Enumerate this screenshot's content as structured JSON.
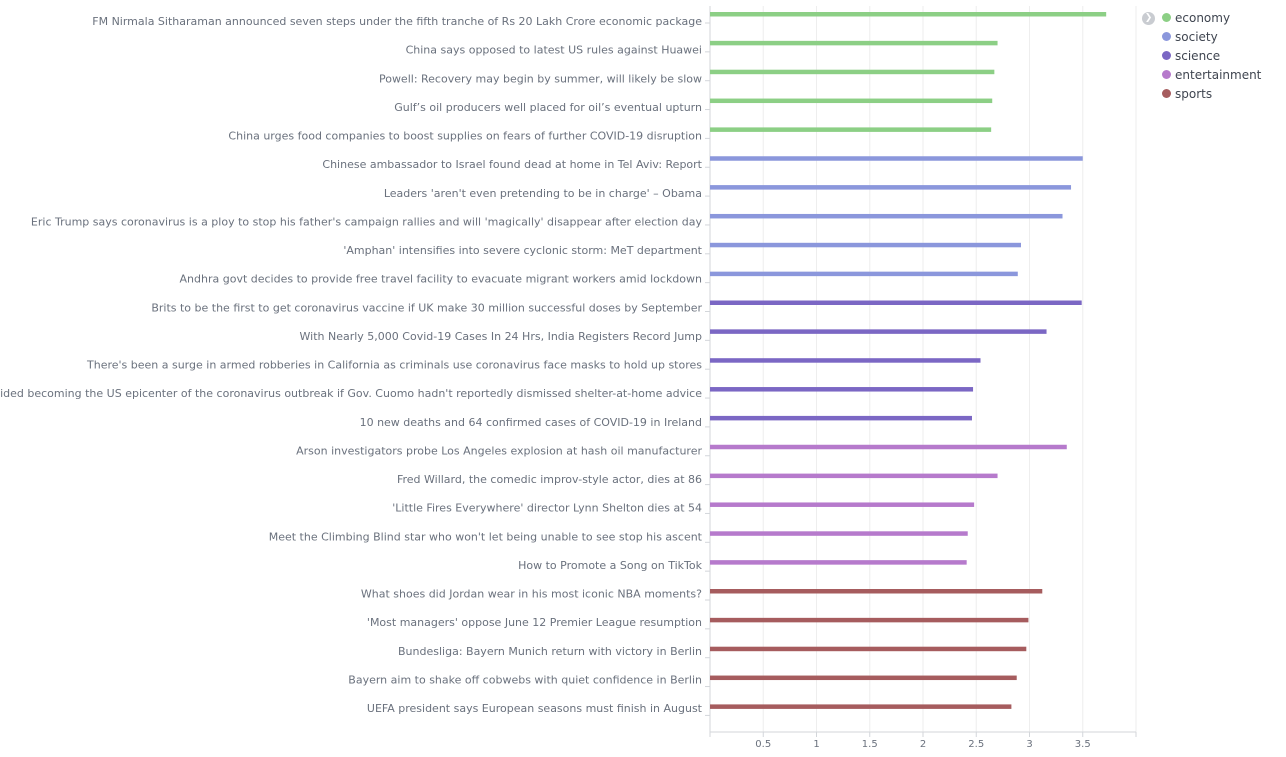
{
  "chart_data": {
    "type": "bar",
    "orientation": "horizontal",
    "xlim": [
      0,
      4.0
    ],
    "x_ticks": [
      "0.5",
      "1",
      "1.5",
      "2",
      "2.5",
      "3",
      "3.5"
    ],
    "grid": true,
    "legend_position": "top-right",
    "series": [
      {
        "name": "economy",
        "color": "#8ccf85",
        "categories": [
          "FM Nirmala Sitharaman announced seven steps under the fifth tranche of Rs 20 Lakh Crore economic package",
          "China says opposed to latest US rules against Huawei",
          "Powell: Recovery may begin by summer, will likely be slow",
          "Gulf’s oil producers well placed for oil’s eventual upturn",
          "China urges food companies to boost supplies on fears of further COVID-19 disruption"
        ],
        "values": [
          3.72,
          2.7,
          2.67,
          2.65,
          2.64
        ]
      },
      {
        "name": "society",
        "color": "#8b97dc",
        "categories": [
          "Chinese ambassador to Israel found dead at home in Tel Aviv: Report",
          "Leaders 'aren't even pretending to be in charge' – Obama",
          "Eric Trump says coronavirus is a ploy to stop his father's campaign rallies and will 'magically' disappear after election day",
          "'Amphan' intensifies into severe cyclonic storm: MeT department",
          "Andhra govt decides to provide free travel facility to evacuate migrant workers amid lockdown"
        ],
        "values": [
          3.5,
          3.39,
          3.31,
          2.92,
          2.89
        ]
      },
      {
        "name": "science",
        "color": "#7b67c4",
        "categories": [
          "Brits to be the first to get coronavirus vaccine if UK make 30 million successful doses by September",
          "With Nearly 5,000 Covid-19 Cases In 24 Hrs, India Registers Record Jump",
          "There's been a surge in armed robberies in California as criminals use coronavirus face masks to hold up stores",
          "New York might have avoided becoming the US epicenter of the coronavirus outbreak if Gov. Cuomo hadn't reportedly dismissed shelter-at-home advice",
          "10 new deaths and 64 confirmed cases of COVID-19 in Ireland"
        ],
        "values": [
          3.49,
          3.16,
          2.54,
          2.47,
          2.46
        ]
      },
      {
        "name": "entertainment",
        "color": "#b67acc",
        "categories": [
          "Arson investigators probe Los Angeles explosion at hash oil manufacturer",
          "Fred Willard, the comedic improv-style actor, dies at 86",
          "'Little Fires Everywhere' director Lynn Shelton dies at 54",
          "Meet the Climbing Blind star who won't let being unable to see stop his ascent",
          "How to Promote a Song on TikTok"
        ],
        "values": [
          3.35,
          2.7,
          2.48,
          2.42,
          2.41
        ]
      },
      {
        "name": "sports",
        "color": "#a65c5e",
        "categories": [
          "What shoes did Jordan wear in his most iconic NBA moments?",
          "'Most managers' oppose June 12 Premier League resumption",
          "Bundesliga: Bayern Munich return with victory in Berlin",
          "Bayern aim to shake off cobwebs with quiet confidence in Berlin",
          "UEFA president says European seasons must finish in August"
        ],
        "values": [
          3.12,
          2.99,
          2.97,
          2.88,
          2.83
        ]
      }
    ]
  },
  "legend": {
    "toggle_icon": "chevron-right-icon",
    "items": [
      {
        "label": "economy",
        "color": "#8ccf85"
      },
      {
        "label": "society",
        "color": "#8b97dc"
      },
      {
        "label": "science",
        "color": "#7b67c4"
      },
      {
        "label": "entertainment",
        "color": "#b67acc"
      },
      {
        "label": "sports",
        "color": "#a65c5e"
      }
    ]
  }
}
